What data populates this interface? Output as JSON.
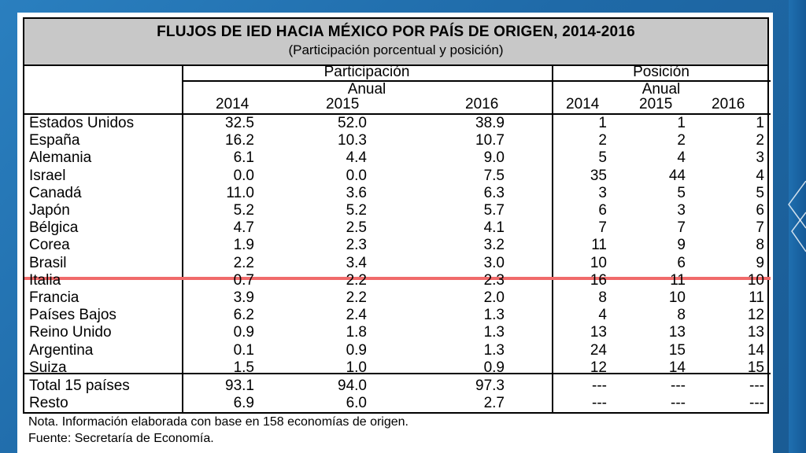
{
  "title": "FLUJOS DE IED HACIA MÉXICO POR PAÍS DE ORIGEN, 2014-2016",
  "subtitle": "(Participación porcentual y posición)",
  "headers": {
    "participacion": "Participación",
    "posicion": "Posición",
    "anual": "Anual",
    "years": [
      "2014",
      "2015",
      "2016"
    ]
  },
  "rows": [
    {
      "country": "Estados Unidos",
      "p": [
        "32.5",
        "52.0",
        "38.9"
      ],
      "pos": [
        "1",
        "1",
        "1"
      ]
    },
    {
      "country": "España",
      "p": [
        "16.2",
        "10.3",
        "10.7"
      ],
      "pos": [
        "2",
        "2",
        "2"
      ]
    },
    {
      "country": "Alemania",
      "p": [
        "6.1",
        "4.4",
        "9.0"
      ],
      "pos": [
        "5",
        "4",
        "3"
      ]
    },
    {
      "country": "Israel",
      "p": [
        "0.0",
        "0.0",
        "7.5"
      ],
      "pos": [
        "35",
        "44",
        "4"
      ]
    },
    {
      "country": "Canadá",
      "p": [
        "11.0",
        "3.6",
        "6.3"
      ],
      "pos": [
        "3",
        "5",
        "5"
      ]
    },
    {
      "country": "Japón",
      "p": [
        "5.2",
        "5.2",
        "5.7"
      ],
      "pos": [
        "6",
        "3",
        "6"
      ]
    },
    {
      "country": "Bélgica",
      "p": [
        "4.7",
        "2.5",
        "4.1"
      ],
      "pos": [
        "7",
        "7",
        "7"
      ]
    },
    {
      "country": "Corea",
      "p": [
        "1.9",
        "2.3",
        "3.2"
      ],
      "pos": [
        "11",
        "9",
        "8"
      ]
    },
    {
      "country": "Brasil",
      "p": [
        "2.2",
        "3.4",
        "3.0"
      ],
      "pos": [
        "10",
        "6",
        "9"
      ]
    },
    {
      "country": "Italia",
      "p": [
        "0.7",
        "2.2",
        "2.3"
      ],
      "pos": [
        "16",
        "11",
        "10"
      ]
    },
    {
      "country": "Francia",
      "p": [
        "3.9",
        "2.2",
        "2.0"
      ],
      "pos": [
        "8",
        "10",
        "11"
      ]
    },
    {
      "country": "Países Bajos",
      "p": [
        "6.2",
        "2.4",
        "1.3"
      ],
      "pos": [
        "4",
        "8",
        "12"
      ]
    },
    {
      "country": "Reino Unido",
      "p": [
        "0.9",
        "1.8",
        "1.3"
      ],
      "pos": [
        "13",
        "13",
        "13"
      ]
    },
    {
      "country": "Argentina",
      "p": [
        "0.1",
        "0.9",
        "1.3"
      ],
      "pos": [
        "24",
        "15",
        "14"
      ]
    },
    {
      "country": "Suiza",
      "p": [
        "1.5",
        "1.0",
        "0.9"
      ],
      "pos": [
        "12",
        "14",
        "15"
      ]
    }
  ],
  "totals": [
    {
      "country": "Total 15 países",
      "p": [
        "93.1",
        "94.0",
        "97.3"
      ],
      "pos": [
        "---",
        "---",
        "---"
      ]
    },
    {
      "country": "Resto",
      "p": [
        "6.9",
        "6.0",
        "2.7"
      ],
      "pos": [
        "---",
        "---",
        "---"
      ]
    }
  ],
  "note": "Nota. Información elaborada con base en 158 economías de origen.",
  "source": "Fuente: Secretaría de Economía.",
  "colors": {
    "highlight_line": "#f06a6a",
    "background": "#1f6aa8",
    "header_fill": "#c8c8c8"
  }
}
